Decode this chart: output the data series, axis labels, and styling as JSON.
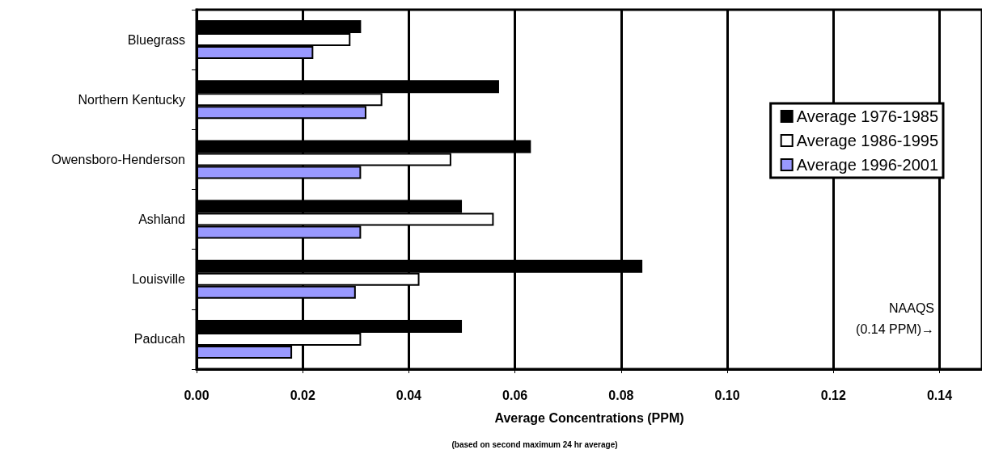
{
  "chart_data": {
    "type": "bar",
    "orientation": "horizontal",
    "xlabel": "Average Concentrations (PPM)",
    "annotations": [
      "(based on second maximum 24 hr average)",
      "NAAQS\n(0.14 PPM)→"
    ],
    "categories": [
      "Bluegrass",
      "Northern Kentucky",
      "Owensboro-Henderson",
      "Ashland",
      "Louisville",
      "Paducah"
    ],
    "series": [
      {
        "name": "Average 1976-1985",
        "color": "#000000",
        "values": [
          0.031,
          0.057,
          0.063,
          0.05,
          0.084,
          0.05
        ]
      },
      {
        "name": "Average 1986-1995",
        "color": "#ffffff",
        "values": [
          0.029,
          0.035,
          0.048,
          0.056,
          0.042,
          0.031
        ]
      },
      {
        "name": "Average 1996-2001",
        "color": "#9999ff",
        "values": [
          0.022,
          0.032,
          0.031,
          0.031,
          0.03,
          0.018
        ]
      }
    ],
    "xlim": [
      0,
      0.148
    ],
    "xticks": [
      {
        "value": 0,
        "label": "0.00"
      },
      {
        "value": 0.02,
        "label": "0.02"
      },
      {
        "value": 0.04,
        "label": "0.04"
      },
      {
        "value": 0.06,
        "label": "0.06"
      },
      {
        "value": 0.08,
        "label": "0.08"
      },
      {
        "value": 0.1,
        "label": "0.10"
      },
      {
        "value": 0.12,
        "label": "0.12"
      },
      {
        "value": 0.14,
        "label": "0.14"
      }
    ],
    "grid": "x",
    "legend": "right"
  }
}
